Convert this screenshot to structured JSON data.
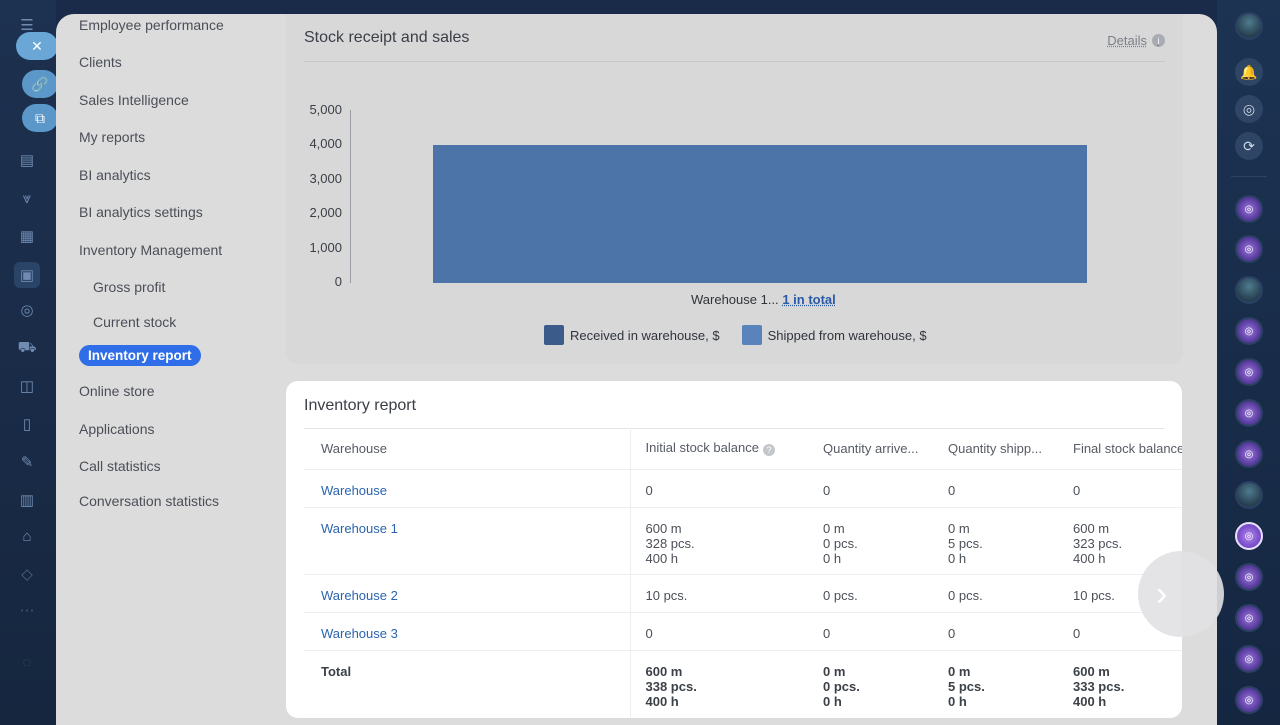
{
  "menu": {
    "items": [
      {
        "label": "Employee performance"
      },
      {
        "label": "Clients"
      },
      {
        "label": "Sales Intelligence"
      },
      {
        "label": "My reports"
      },
      {
        "label": "BI analytics"
      },
      {
        "label": "BI analytics settings"
      },
      {
        "label": "Inventory Management"
      },
      {
        "label": "Gross profit"
      },
      {
        "label": "Current stock"
      },
      {
        "label": "Inventory report"
      },
      {
        "label": "Online store"
      },
      {
        "label": "Applications"
      },
      {
        "label": "Call statistics"
      },
      {
        "label": "Conversation statistics"
      }
    ]
  },
  "chart_card": {
    "title": "Stock receipt and sales",
    "details_label": "Details",
    "x_label_prefix": "Warehouse 1...",
    "x_label_link": "1 in total"
  },
  "chart_data": {
    "type": "bar",
    "title": "Stock receipt and sales",
    "categories": [
      "Warehouse 1..."
    ],
    "series": [
      {
        "name": "Received in warehouse, $",
        "values": [
          0
        ],
        "color": "#3b5b8a"
      },
      {
        "name": "Shipped from warehouse, $",
        "values": [
          4000
        ],
        "color": "#4d74a9"
      }
    ],
    "yticks": [
      "5,000",
      "4,000",
      "3,000",
      "2,000",
      "1,000",
      "0"
    ],
    "ylim": [
      0,
      5000
    ],
    "legend_position": "bottom"
  },
  "table": {
    "title": "Inventory report",
    "headers": [
      "Warehouse",
      "Initial stock balance",
      "Quantity arrive...",
      "Quantity shipp...",
      "Final stock balance"
    ],
    "rows": [
      {
        "warehouse": "Warehouse",
        "initial": [
          "0"
        ],
        "arrived": [
          "0"
        ],
        "shipped": [
          "0"
        ],
        "final": [
          "0"
        ]
      },
      {
        "warehouse": "Warehouse 1",
        "initial": [
          "600 m",
          "328 pcs.",
          "400 h"
        ],
        "arrived": [
          "0 m",
          "0 pcs.",
          "0 h"
        ],
        "shipped": [
          "0 m",
          "5 pcs.",
          "0 h"
        ],
        "final": [
          "600 m",
          "323 pcs.",
          "400 h"
        ]
      },
      {
        "warehouse": "Warehouse 2",
        "initial": [
          "10 pcs."
        ],
        "arrived": [
          "0 pcs."
        ],
        "shipped": [
          "0 pcs."
        ],
        "final": [
          "10 pcs."
        ]
      },
      {
        "warehouse": "Warehouse 3",
        "initial": [
          "0"
        ],
        "arrived": [
          "0"
        ],
        "shipped": [
          "0"
        ],
        "final": [
          "0"
        ]
      }
    ],
    "total": {
      "label": "Total",
      "initial": [
        "600 m",
        "338 pcs.",
        "400 h"
      ],
      "arrived": [
        "0 m",
        "0 pcs.",
        "0 h"
      ],
      "shipped": [
        "0 m",
        "5 pcs.",
        "0 h"
      ],
      "final": [
        "600 m",
        "333 pcs.",
        "400 h"
      ]
    }
  },
  "icons": {
    "close": "close-icon",
    "next": "chevron-right-icon"
  }
}
